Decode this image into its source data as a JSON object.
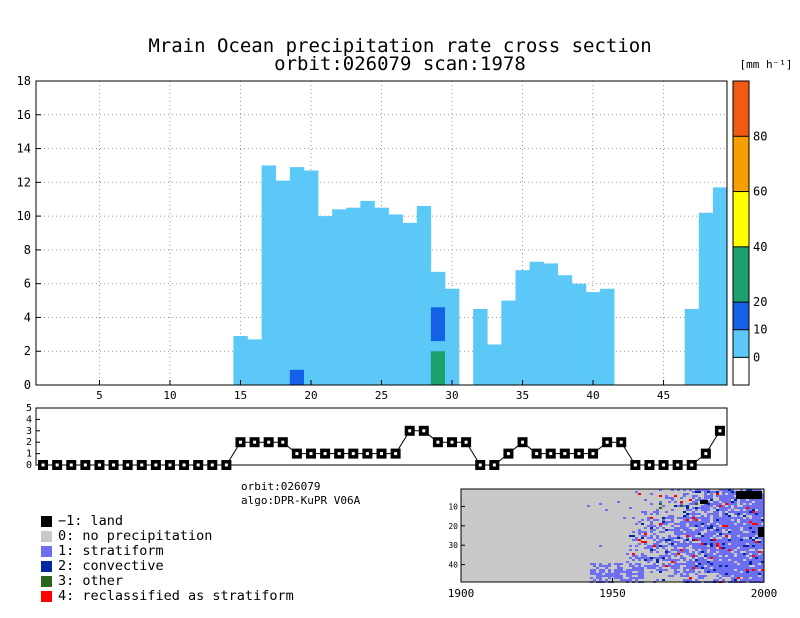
{
  "chart_data": [
    {
      "type": "heatmap",
      "title_line1": "Mrain Ocean precipitation rate cross section",
      "title_line2": "orbit:026079     scan:1978",
      "xlim": [
        1,
        49
      ],
      "ylim": [
        0,
        18
      ],
      "x_ticks": [
        "5",
        "10",
        "15",
        "20",
        "25",
        "30",
        "35",
        "40",
        "45"
      ],
      "y_ticks": [
        "0",
        "2",
        "4",
        "6",
        "8",
        "10",
        "12",
        "14",
        "16",
        "18"
      ],
      "colorbar": {
        "unit_label": "[mm h⁻¹]",
        "tick_labels": [
          "0",
          "10",
          "20",
          "40",
          "60",
          "80"
        ],
        "bands": [
          {
            "range": [
              -10,
              0
            ],
            "color": "#ffffff"
          },
          {
            "range": [
              0,
              10
            ],
            "color": "#5bc8f8"
          },
          {
            "range": [
              10,
              20
            ],
            "color": "#1460e6"
          },
          {
            "range": [
              20,
              40
            ],
            "color": "#1ea06e"
          },
          {
            "range": [
              40,
              60
            ],
            "color": "#ffff00"
          },
          {
            "range": [
              60,
              80
            ],
            "color": "#f5a000"
          },
          {
            "range": [
              80,
              100
            ],
            "color": "#f05a14"
          }
        ]
      },
      "columns": [
        {
          "x": 15,
          "top": 2.9
        },
        {
          "x": 16,
          "top": 2.7
        },
        {
          "x": 17,
          "top": 13.0
        },
        {
          "x": 18,
          "top": 12.1
        },
        {
          "x": 19,
          "top": 12.9
        },
        {
          "x": 20,
          "top": 12.7
        },
        {
          "x": 21,
          "top": 10.0
        },
        {
          "x": 22,
          "top": 10.4
        },
        {
          "x": 23,
          "top": 10.5
        },
        {
          "x": 24,
          "top": 10.9
        },
        {
          "x": 25,
          "top": 10.5
        },
        {
          "x": 26,
          "top": 10.1
        },
        {
          "x": 27,
          "top": 9.6
        },
        {
          "x": 28,
          "top": 10.6
        },
        {
          "x": 29,
          "top": 6.7
        },
        {
          "x": 30,
          "top": 5.7
        },
        {
          "x": 32,
          "top": 4.5
        },
        {
          "x": 33,
          "top": 2.4
        },
        {
          "x": 34,
          "top": 5.0
        },
        {
          "x": 35,
          "top": 6.8
        },
        {
          "x": 36,
          "top": 7.3
        },
        {
          "x": 37,
          "top": 7.2
        },
        {
          "x": 38,
          "top": 6.5
        },
        {
          "x": 39,
          "top": 6.0
        },
        {
          "x": 40,
          "top": 5.5
        },
        {
          "x": 41,
          "top": 5.7
        },
        {
          "x": 47,
          "top": 4.5
        },
        {
          "x": 48,
          "top": 10.2
        },
        {
          "x": 49,
          "top": 11.7
        }
      ],
      "strong_cells": [
        {
          "x": 19,
          "y0": 0,
          "y1": 0.9,
          "band": 2
        },
        {
          "x": 29,
          "y0": 2.6,
          "y1": 4.6,
          "band": 2
        },
        {
          "x": 29,
          "y0": 0,
          "y1": 2.0,
          "band": 3
        }
      ]
    },
    {
      "type": "line",
      "ylim": [
        0,
        5
      ],
      "y_ticks": [
        "0",
        "1",
        "2",
        "3",
        "4",
        "5"
      ],
      "x": [
        1,
        2,
        3,
        4,
        5,
        6,
        7,
        8,
        9,
        10,
        11,
        12,
        13,
        14,
        15,
        16,
        17,
        18,
        19,
        20,
        21,
        22,
        23,
        24,
        25,
        26,
        27,
        28,
        29,
        30,
        31,
        32,
        33,
        34,
        35,
        36,
        37,
        38,
        39,
        40,
        41,
        42,
        43,
        44,
        45,
        46,
        47,
        48,
        49
      ],
      "values": [
        0,
        0,
        0,
        0,
        0,
        0,
        0,
        0,
        0,
        0,
        0,
        0,
        0,
        0,
        2,
        2,
        2,
        2,
        1,
        1,
        1,
        1,
        1,
        1,
        1,
        1,
        3,
        3,
        2,
        2,
        2,
        0,
        0,
        1,
        2,
        1,
        1,
        1,
        1,
        1,
        2,
        2,
        0,
        0,
        0,
        0,
        0,
        1,
        3
      ]
    },
    {
      "type": "heatmap",
      "x_ticks": [
        "1900",
        "1950",
        "2000"
      ],
      "y_ticks": [
        "10",
        "20",
        "30",
        "40"
      ],
      "xlim": [
        1900,
        2000
      ],
      "ylim": [
        1,
        49
      ]
    }
  ],
  "info": {
    "orbit": "orbit:026079",
    "algo": "algo:DPR-KuPR V06A"
  },
  "legend": [
    {
      "label": "−1: land",
      "color": "#000000"
    },
    {
      "label": "0: no precipitation",
      "color": "#c8c8c8"
    },
    {
      "label": "1: stratiform",
      "color": "#6e6ef0"
    },
    {
      "label": "2: convective",
      "color": "#0028a0"
    },
    {
      "label": "3: other",
      "color": "#2d641e"
    },
    {
      "label": "4: reclassified as stratiform",
      "color": "#ff0000"
    }
  ]
}
